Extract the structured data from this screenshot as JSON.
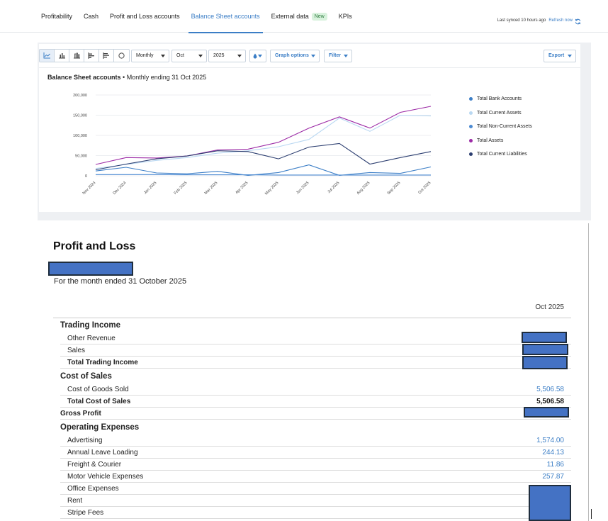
{
  "nav": {
    "tabs": [
      {
        "label": "Profitability"
      },
      {
        "label": "Cash"
      },
      {
        "label": "Profit and Loss accounts"
      },
      {
        "label": "Balance Sheet accounts",
        "active": true
      },
      {
        "label": "External data",
        "badge": "New"
      },
      {
        "label": "KPIs"
      }
    ],
    "sync_text": "Last synced 10 hours ago",
    "refresh_label": "Refresh now"
  },
  "toolbar": {
    "period": "Monthly",
    "month": "Oct",
    "year": "2025",
    "graph_options": "Graph options",
    "filter": "Filter",
    "export": "Export",
    "chart_type_icons": [
      "line-chart-icon",
      "bar-chart-icon",
      "stacked-bar-icon",
      "horizontal-bar-icon",
      "stacked-horizontal-bar-icon",
      "pie-chart-icon"
    ],
    "color_icon": "droplet-icon"
  },
  "chart_header": {
    "title": "Balance Sheet accounts",
    "subtitle": " • Monthly ending 31 Oct 2025"
  },
  "chart_data": {
    "type": "line",
    "x": [
      "Nov 2024",
      "Dec 2024",
      "Jan 2025",
      "Feb 2025",
      "Mar 2025",
      "Apr 2025",
      "May 2025",
      "Jun 2025",
      "Jul 2025",
      "Aug 2025",
      "Sep 2025",
      "Oct 2025"
    ],
    "y_ticks": [
      "200,000",
      "150,000",
      "100,000",
      "50,000",
      "0"
    ],
    "ylim": [
      0,
      200000
    ],
    "grid": true,
    "legend_position": "right",
    "series": [
      {
        "name": "Total Bank Accounts",
        "color": "#3d7fc7",
        "values": [
          12000,
          21000,
          7000,
          5000,
          11000,
          1000,
          8000,
          27000,
          1000,
          8000,
          6000,
          22000
        ]
      },
      {
        "name": "Total Current Assets",
        "color": "#b9d8f2",
        "values": [
          18000,
          28000,
          38000,
          45000,
          56000,
          62000,
          72000,
          90000,
          143000,
          110000,
          150000,
          148000
        ]
      },
      {
        "name": "Total Non-Current Assets",
        "color": "#4c8ad2",
        "values": [
          3000,
          3000,
          3000,
          2500,
          2500,
          2500,
          2000,
          2000,
          2000,
          2000,
          2000,
          2000
        ]
      },
      {
        "name": "Total Assets",
        "color": "#9c2aa6",
        "values": [
          28000,
          45000,
          44000,
          49000,
          64000,
          66000,
          83000,
          118000,
          146000,
          118000,
          157000,
          172000
        ]
      },
      {
        "name": "Total Current Liabilities",
        "color": "#2c3e70",
        "values": [
          15000,
          29000,
          42000,
          49000,
          62000,
          60000,
          42000,
          71000,
          80000,
          29000,
          45000,
          60000
        ]
      }
    ]
  },
  "report": {
    "title": "Profit and Loss",
    "subtitle": "For the month ended 31 October 2025",
    "column": "Oct 2025",
    "rows": [
      {
        "label": "Trading Income",
        "kind": "section"
      },
      {
        "label": "Other Revenue",
        "kind": "item",
        "value": null
      },
      {
        "label": "Sales",
        "kind": "item",
        "value": null
      },
      {
        "label": "Total Trading Income",
        "kind": "total",
        "value": null
      },
      {
        "label": "Cost of Sales",
        "kind": "section"
      },
      {
        "label": "Cost of Goods Sold",
        "kind": "item",
        "value": "5,506.58"
      },
      {
        "label": "Total Cost of Sales",
        "kind": "total",
        "value": "5,506.58"
      },
      {
        "label": "Gross Profit",
        "kind": "gp",
        "value": null
      },
      {
        "label": "Operating Expenses",
        "kind": "section"
      },
      {
        "label": "Advertising",
        "kind": "item",
        "value": "1,574.00"
      },
      {
        "label": "Annual Leave Loading",
        "kind": "item",
        "value": "244.13"
      },
      {
        "label": "Freight & Courier",
        "kind": "item",
        "value": "11.86"
      },
      {
        "label": "Motor Vehicle Expenses",
        "kind": "item",
        "value": "257.87"
      },
      {
        "label": "Office Expenses",
        "kind": "item",
        "value": null
      },
      {
        "label": "Rent",
        "kind": "item",
        "value": null
      },
      {
        "label": "Stripe Fees",
        "kind": "item",
        "value": null
      }
    ]
  }
}
